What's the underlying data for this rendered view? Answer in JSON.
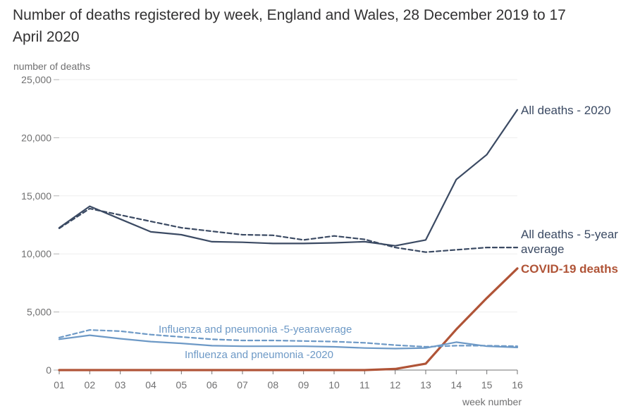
{
  "chart_data": {
    "type": "line",
    "title": "Number of deaths registered by week, England and Wales, 28 December 2019 to 17 April 2020",
    "ylabel": "number of deaths",
    "xlabel": "week number",
    "ylim": [
      0,
      25000
    ],
    "yticks": [
      0,
      5000,
      10000,
      15000,
      20000,
      25000
    ],
    "ytick_labels": [
      "0",
      "5,000",
      "10,000",
      "15,000",
      "20,000",
      "25,000"
    ],
    "categories": [
      "01",
      "02",
      "03",
      "04",
      "05",
      "06",
      "07",
      "08",
      "09",
      "10",
      "11",
      "12",
      "13",
      "14",
      "15",
      "16"
    ],
    "grid": true,
    "series": [
      {
        "name": "All deaths - 2020",
        "color": "#3b4a63",
        "dash": false,
        "width": 2.2,
        "values": [
          12250,
          14100,
          13000,
          11900,
          11650,
          11050,
          11000,
          10900,
          10900,
          10950,
          11050,
          10700,
          11200,
          16400,
          18550,
          22400
        ]
      },
      {
        "name": "All deaths - 5-year average",
        "color": "#3b4a63",
        "dash": true,
        "width": 2.2,
        "values": [
          12200,
          13900,
          13350,
          12800,
          12250,
          11950,
          11650,
          11600,
          11200,
          11550,
          11250,
          10550,
          10150,
          10350,
          10550,
          10550
        ]
      },
      {
        "name": "COVID-19 deaths",
        "color": "#b05437",
        "dash": false,
        "width": 3.2,
        "values": [
          0,
          0,
          0,
          0,
          0,
          0,
          0,
          0,
          0,
          0,
          0,
          100,
          550,
          3500,
          6200,
          8750
        ]
      },
      {
        "name": "Influenza and pneumonia -5-yearaverage",
        "color": "#6d99c6",
        "dash": true,
        "width": 2.2,
        "values": [
          2800,
          3450,
          3350,
          3050,
          2850,
          2650,
          2550,
          2550,
          2500,
          2450,
          2350,
          2150,
          2000,
          2100,
          2100,
          2050
        ]
      },
      {
        "name": "Influenza and pneumonia -2020",
        "color": "#6d99c6",
        "dash": false,
        "width": 2.2,
        "values": [
          2650,
          3000,
          2700,
          2450,
          2300,
          2100,
          2050,
          2050,
          2050,
          2000,
          1900,
          1850,
          1900,
          2400,
          2050,
          1950
        ]
      }
    ]
  }
}
